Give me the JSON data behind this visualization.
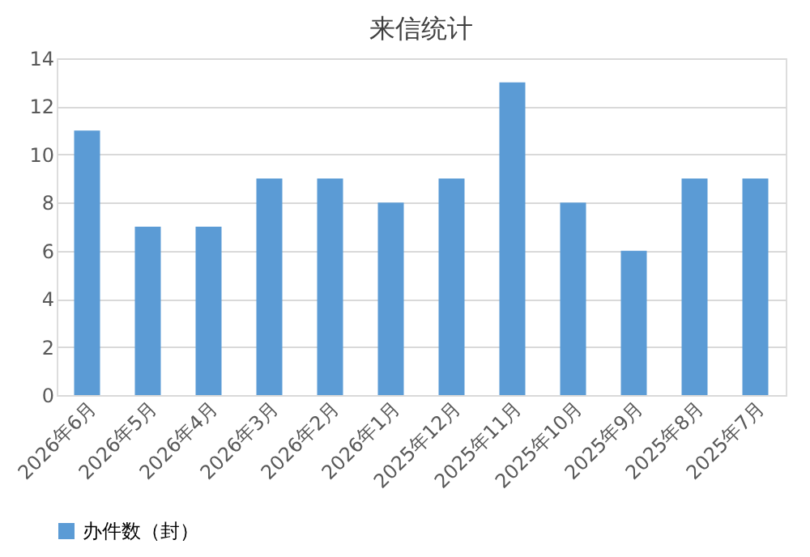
{
  "chart_data": {
    "type": "bar",
    "title": "来信统计",
    "categories": [
      "2026年6月",
      "2026年5月",
      "2026年4月",
      "2026年3月",
      "2026年2月",
      "2026年1月",
      "2025年12月",
      "2025年11月",
      "2025年10月",
      "2025年9月",
      "2025年8月",
      "2025年7月"
    ],
    "series": [
      {
        "name": "办件数（封）",
        "color": "#5b9bd5",
        "values": [
          11,
          7,
          7,
          9,
          9,
          8,
          9,
          13,
          8,
          6,
          9,
          9
        ]
      }
    ],
    "ylim": [
      0,
      14
    ],
    "yticks": [
      0,
      2,
      4,
      6,
      8,
      10,
      12,
      14
    ],
    "grid": "y",
    "legend": "bottom"
  }
}
